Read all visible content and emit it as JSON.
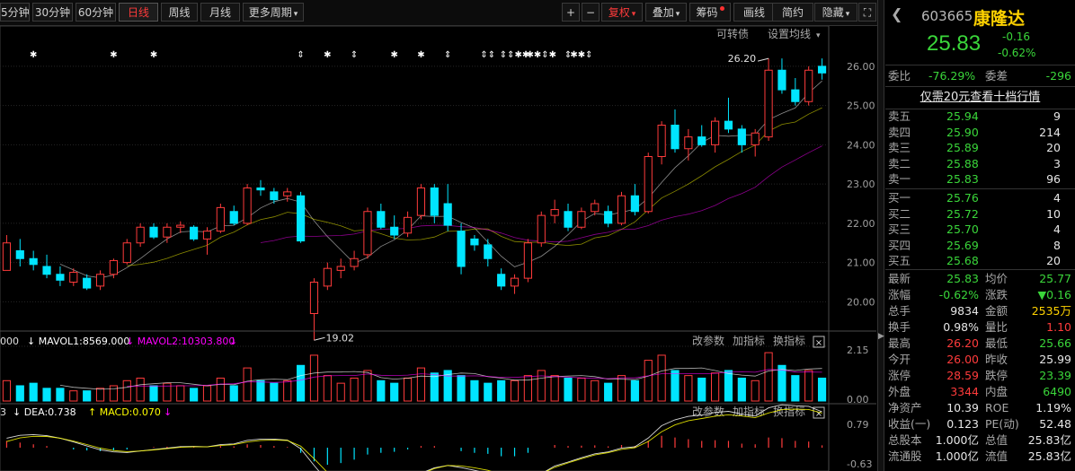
{
  "toolbar": {
    "periods": [
      "5分钟",
      "30分钟",
      "60分钟",
      "日线",
      "周线",
      "月线",
      "更多周期"
    ],
    "active_period": "日线",
    "tools": [
      "+",
      "−",
      "复权",
      "叠加",
      "筹码",
      "画线",
      "简约",
      "隐藏"
    ],
    "right_tools": [
      "可转债",
      "设置均线"
    ]
  },
  "colors": {
    "up": "#ff3b3b",
    "down": "#00e5ff",
    "accent": "#ff3b3b",
    "green": "#3ad63a",
    "ma5": "#ffffff",
    "ma10": "#ffff00",
    "ma20": "#ff00ff",
    "brand": "#ffd200"
  },
  "price_axis": {
    "ticks": [
      "26.00",
      "25.00",
      "24.00",
      "23.00",
      "22.00",
      "21.00",
      "20.00"
    ],
    "min": 19.3,
    "max": 26.5
  },
  "annotations": {
    "low": "19.02",
    "high": "26.20"
  },
  "event_markers": [
    {
      "i": 2,
      "s": "✱"
    },
    {
      "i": 8,
      "s": "✱"
    },
    {
      "i": 11,
      "s": "✱"
    },
    {
      "i": 22,
      "s": "⇕"
    },
    {
      "i": 24,
      "s": "✱"
    },
    {
      "i": 26,
      "s": "⇕"
    },
    {
      "i": 29,
      "s": "✱"
    },
    {
      "i": 31,
      "s": "✱"
    },
    {
      "i": 33,
      "s": "⇕"
    },
    {
      "i": 36,
      "s": "⇕⇕"
    },
    {
      "i": 38,
      "s": "⇕⇕✱✱"
    },
    {
      "i": 40,
      "s": "✱✱⇕✱"
    },
    {
      "i": 42,
      "s": "⇕"
    },
    {
      "i": 43,
      "s": "✱✱⇕"
    }
  ],
  "volume_pane": {
    "label": "000  MAVOL1:8569.000  MAVOL2:10303.800",
    "label_parts": [
      "000",
      "↓ MAVOL1:8569.000",
      "↓ MAVOL2:10303.800",
      "↓"
    ],
    "ticks": [
      "2.15",
      "0.00"
    ],
    "buttons": [
      "改参数",
      "加指标",
      "换指标"
    ]
  },
  "macd_pane": {
    "label_parts": [
      "3",
      "↓ DEA:0.738",
      "↑ MACD:0.070",
      "↓"
    ],
    "ticks": [
      "0.79",
      "-0.63"
    ],
    "buttons": [
      "改参数",
      "加指标",
      "换指标"
    ]
  },
  "quote": {
    "code": "603665",
    "name": "康隆达",
    "price": "25.83",
    "change": "-0.16",
    "change_pct": "-0.62%",
    "webi": {
      "label": "委比",
      "value": "-76.29%",
      "diff_label": "委差",
      "diff": "-296"
    },
    "promo": "仅需20元查看十档行情",
    "asks": [
      {
        "label": "卖五",
        "price": "25.94",
        "vol": "9"
      },
      {
        "label": "卖四",
        "price": "25.90",
        "vol": "214"
      },
      {
        "label": "卖三",
        "price": "25.89",
        "vol": "20"
      },
      {
        "label": "卖二",
        "price": "25.88",
        "vol": "3"
      },
      {
        "label": "卖一",
        "price": "25.83",
        "vol": "96"
      }
    ],
    "bids": [
      {
        "label": "买一",
        "price": "25.76",
        "vol": "4"
      },
      {
        "label": "买二",
        "price": "25.72",
        "vol": "10"
      },
      {
        "label": "买三",
        "price": "25.70",
        "vol": "4"
      },
      {
        "label": "买四",
        "price": "25.69",
        "vol": "8"
      },
      {
        "label": "买五",
        "price": "25.68",
        "vol": "20"
      }
    ],
    "stats": [
      {
        "l1": "最新",
        "v1": "25.83",
        "c1": "g",
        "l2": "均价",
        "v2": "25.77",
        "c2": "g"
      },
      {
        "l1": "涨幅",
        "v1": "-0.62%",
        "c1": "g",
        "l2": "涨跌",
        "v2": "▼0.16",
        "c2": "g"
      },
      {
        "l1": "总手",
        "v1": "9834",
        "c1": "w",
        "l2": "金额",
        "v2": "2535万",
        "c2": "y"
      },
      {
        "l1": "换手",
        "v1": "0.98%",
        "c1": "w",
        "l2": "量比",
        "v2": "1.10",
        "c2": "r"
      },
      {
        "l1": "最高",
        "v1": "26.20",
        "c1": "r",
        "l2": "最低",
        "v2": "25.66",
        "c2": "g"
      },
      {
        "l1": "今开",
        "v1": "26.00",
        "c1": "r",
        "l2": "昨收",
        "v2": "25.99",
        "c2": "w"
      },
      {
        "l1": "涨停",
        "v1": "28.59",
        "c1": "r",
        "l2": "跌停",
        "v2": "23.39",
        "c2": "g"
      },
      {
        "l1": "外盘",
        "v1": "3344",
        "c1": "r",
        "l2": "内盘",
        "v2": "6490",
        "c2": "g"
      },
      {
        "l1": "净资产",
        "v1": "10.39",
        "c1": "w",
        "l2": "ROE",
        "v2": "1.19%",
        "c2": "w"
      },
      {
        "l1": "收益(一)",
        "v1": "0.123",
        "c1": "w",
        "l2": "PE(动)",
        "v2": "52.48",
        "c2": "w"
      },
      {
        "l1": "总股本",
        "v1": "1.000亿",
        "c1": "w",
        "l2": "总值",
        "v2": "25.83亿",
        "c2": "w"
      },
      {
        "l1": "流通股",
        "v1": "1.000亿",
        "c1": "w",
        "l2": "流值",
        "v2": "25.83亿",
        "c2": "w"
      }
    ]
  },
  "chart_data": {
    "type": "candlestick",
    "series": [
      {
        "o": 20.8,
        "h": 21.7,
        "l": 20.8,
        "c": 21.5
      },
      {
        "o": 21.3,
        "h": 21.6,
        "l": 20.9,
        "c": 21.1
      },
      {
        "o": 21.1,
        "h": 21.3,
        "l": 20.8,
        "c": 20.95
      },
      {
        "o": 20.9,
        "h": 21.2,
        "l": 20.6,
        "c": 20.7
      },
      {
        "o": 20.7,
        "h": 20.9,
        "l": 20.4,
        "c": 20.55
      },
      {
        "o": 20.5,
        "h": 20.85,
        "l": 20.4,
        "c": 20.75
      },
      {
        "o": 20.6,
        "h": 20.7,
        "l": 20.3,
        "c": 20.35
      },
      {
        "o": 20.4,
        "h": 20.8,
        "l": 20.3,
        "c": 20.7
      },
      {
        "o": 20.7,
        "h": 21.1,
        "l": 20.6,
        "c": 21.05
      },
      {
        "o": 21.0,
        "h": 21.6,
        "l": 20.95,
        "c": 21.5
      },
      {
        "o": 21.5,
        "h": 22.0,
        "l": 21.4,
        "c": 21.9
      },
      {
        "o": 21.9,
        "h": 22.0,
        "l": 21.6,
        "c": 21.65
      },
      {
        "o": 21.65,
        "h": 22.0,
        "l": 21.5,
        "c": 21.9
      },
      {
        "o": 21.9,
        "h": 22.05,
        "l": 21.75,
        "c": 21.95
      },
      {
        "o": 21.9,
        "h": 21.95,
        "l": 21.55,
        "c": 21.6
      },
      {
        "o": 21.6,
        "h": 21.9,
        "l": 21.2,
        "c": 21.8
      },
      {
        "o": 21.8,
        "h": 22.5,
        "l": 21.75,
        "c": 22.4
      },
      {
        "o": 22.3,
        "h": 22.45,
        "l": 21.95,
        "c": 22.0
      },
      {
        "o": 22.0,
        "h": 23.0,
        "l": 21.95,
        "c": 22.9
      },
      {
        "o": 22.9,
        "h": 23.1,
        "l": 22.7,
        "c": 22.85
      },
      {
        "o": 22.8,
        "h": 22.9,
        "l": 22.5,
        "c": 22.6
      },
      {
        "o": 22.7,
        "h": 22.9,
        "l": 22.55,
        "c": 22.8
      },
      {
        "o": 22.7,
        "h": 22.8,
        "l": 21.5,
        "c": 21.55
      },
      {
        "o": 19.7,
        "h": 20.6,
        "l": 19.02,
        "c": 20.5
      },
      {
        "o": 20.4,
        "h": 21.0,
        "l": 20.3,
        "c": 20.85
      },
      {
        "o": 20.8,
        "h": 21.1,
        "l": 20.6,
        "c": 20.9
      },
      {
        "o": 20.9,
        "h": 21.3,
        "l": 20.8,
        "c": 21.1
      },
      {
        "o": 21.2,
        "h": 22.4,
        "l": 21.1,
        "c": 22.3
      },
      {
        "o": 22.3,
        "h": 22.5,
        "l": 21.85,
        "c": 21.9
      },
      {
        "o": 21.9,
        "h": 22.2,
        "l": 21.6,
        "c": 21.7
      },
      {
        "o": 21.75,
        "h": 22.3,
        "l": 21.65,
        "c": 22.15
      },
      {
        "o": 22.2,
        "h": 23.0,
        "l": 22.1,
        "c": 22.9
      },
      {
        "o": 22.9,
        "h": 23.0,
        "l": 22.0,
        "c": 22.2
      },
      {
        "o": 22.5,
        "h": 23.0,
        "l": 21.8,
        "c": 21.95
      },
      {
        "o": 21.8,
        "h": 22.0,
        "l": 20.7,
        "c": 20.9
      },
      {
        "o": 21.6,
        "h": 21.7,
        "l": 21.3,
        "c": 21.45
      },
      {
        "o": 21.45,
        "h": 21.6,
        "l": 20.9,
        "c": 21.1
      },
      {
        "o": 20.7,
        "h": 20.85,
        "l": 20.3,
        "c": 20.4
      },
      {
        "o": 20.4,
        "h": 20.7,
        "l": 20.2,
        "c": 20.6
      },
      {
        "o": 20.6,
        "h": 21.6,
        "l": 20.5,
        "c": 21.5
      },
      {
        "o": 21.5,
        "h": 22.3,
        "l": 21.4,
        "c": 22.2
      },
      {
        "o": 22.2,
        "h": 22.6,
        "l": 22.0,
        "c": 22.35
      },
      {
        "o": 22.3,
        "h": 22.5,
        "l": 21.8,
        "c": 21.9
      },
      {
        "o": 21.9,
        "h": 22.4,
        "l": 21.85,
        "c": 22.3
      },
      {
        "o": 22.3,
        "h": 22.6,
        "l": 22.2,
        "c": 22.5
      },
      {
        "o": 22.3,
        "h": 22.45,
        "l": 21.9,
        "c": 22.0
      },
      {
        "o": 22.0,
        "h": 22.8,
        "l": 21.95,
        "c": 22.7
      },
      {
        "o": 22.7,
        "h": 23.0,
        "l": 22.2,
        "c": 22.3
      },
      {
        "o": 22.3,
        "h": 23.8,
        "l": 22.25,
        "c": 23.7
      },
      {
        "o": 23.7,
        "h": 24.6,
        "l": 23.5,
        "c": 24.5
      },
      {
        "o": 24.5,
        "h": 24.9,
        "l": 23.8,
        "c": 23.9
      },
      {
        "o": 23.9,
        "h": 24.4,
        "l": 23.6,
        "c": 24.2
      },
      {
        "o": 24.2,
        "h": 24.5,
        "l": 23.95,
        "c": 24.0
      },
      {
        "o": 24.0,
        "h": 24.7,
        "l": 23.8,
        "c": 24.6
      },
      {
        "o": 24.6,
        "h": 25.2,
        "l": 24.3,
        "c": 24.4
      },
      {
        "o": 24.4,
        "h": 24.5,
        "l": 23.8,
        "c": 24.0
      },
      {
        "o": 24.0,
        "h": 24.4,
        "l": 23.7,
        "c": 24.3
      },
      {
        "o": 24.2,
        "h": 26.2,
        "l": 24.1,
        "c": 25.9
      },
      {
        "o": 25.9,
        "h": 26.2,
        "l": 25.3,
        "c": 25.4
      },
      {
        "o": 25.4,
        "h": 25.7,
        "l": 25.0,
        "c": 25.1
      },
      {
        "o": 25.1,
        "h": 26.0,
        "l": 25.0,
        "c": 25.9
      },
      {
        "o": 26.0,
        "h": 26.2,
        "l": 25.66,
        "c": 25.83
      }
    ],
    "volume": [
      0.8,
      0.6,
      0.7,
      0.5,
      0.5,
      0.4,
      0.4,
      0.5,
      0.6,
      0.8,
      0.9,
      0.6,
      0.7,
      0.6,
      0.5,
      0.6,
      0.9,
      0.6,
      1.3,
      0.8,
      0.7,
      0.8,
      1.4,
      1.8,
      1.0,
      0.7,
      0.9,
      1.2,
      0.8,
      0.7,
      0.9,
      1.3,
      1.1,
      1.2,
      1.0,
      0.8,
      0.7,
      0.8,
      0.8,
      1.0,
      1.2,
      1.0,
      0.9,
      0.9,
      0.8,
      0.7,
      1.0,
      0.8,
      1.6,
      1.8,
      1.2,
      1.0,
      0.9,
      1.1,
      1.2,
      0.9,
      0.8,
      1.9,
      1.4,
      1.0,
      1.2,
      0.9
    ],
    "macd": [
      0.2,
      0.15,
      0.1,
      0.05,
      0.0,
      -0.05,
      -0.08,
      -0.1,
      -0.08,
      -0.05,
      0.0,
      0.02,
      0.03,
      0.04,
      0.02,
      0.0,
      0.05,
      0.04,
      0.1,
      0.08,
      0.05,
      0.02,
      -0.15,
      -0.4,
      -0.5,
      -0.45,
      -0.35,
      -0.2,
      -0.15,
      -0.12,
      -0.05,
      0.05,
      0.05,
      0.0,
      -0.1,
      -0.15,
      -0.18,
      -0.25,
      -0.25,
      -0.15,
      0.0,
      0.08,
      0.05,
      0.06,
      0.07,
      0.04,
      0.08,
      0.05,
      0.2,
      0.35,
      0.3,
      0.25,
      0.2,
      0.22,
      0.2,
      0.12,
      0.1,
      0.3,
      0.28,
      0.2,
      0.18,
      0.07
    ],
    "ylim": [
      19.3,
      26.5
    ],
    "volume_ylim": [
      0,
      2.15
    ],
    "macd_ylim": [
      -0.63,
      0.79
    ]
  }
}
